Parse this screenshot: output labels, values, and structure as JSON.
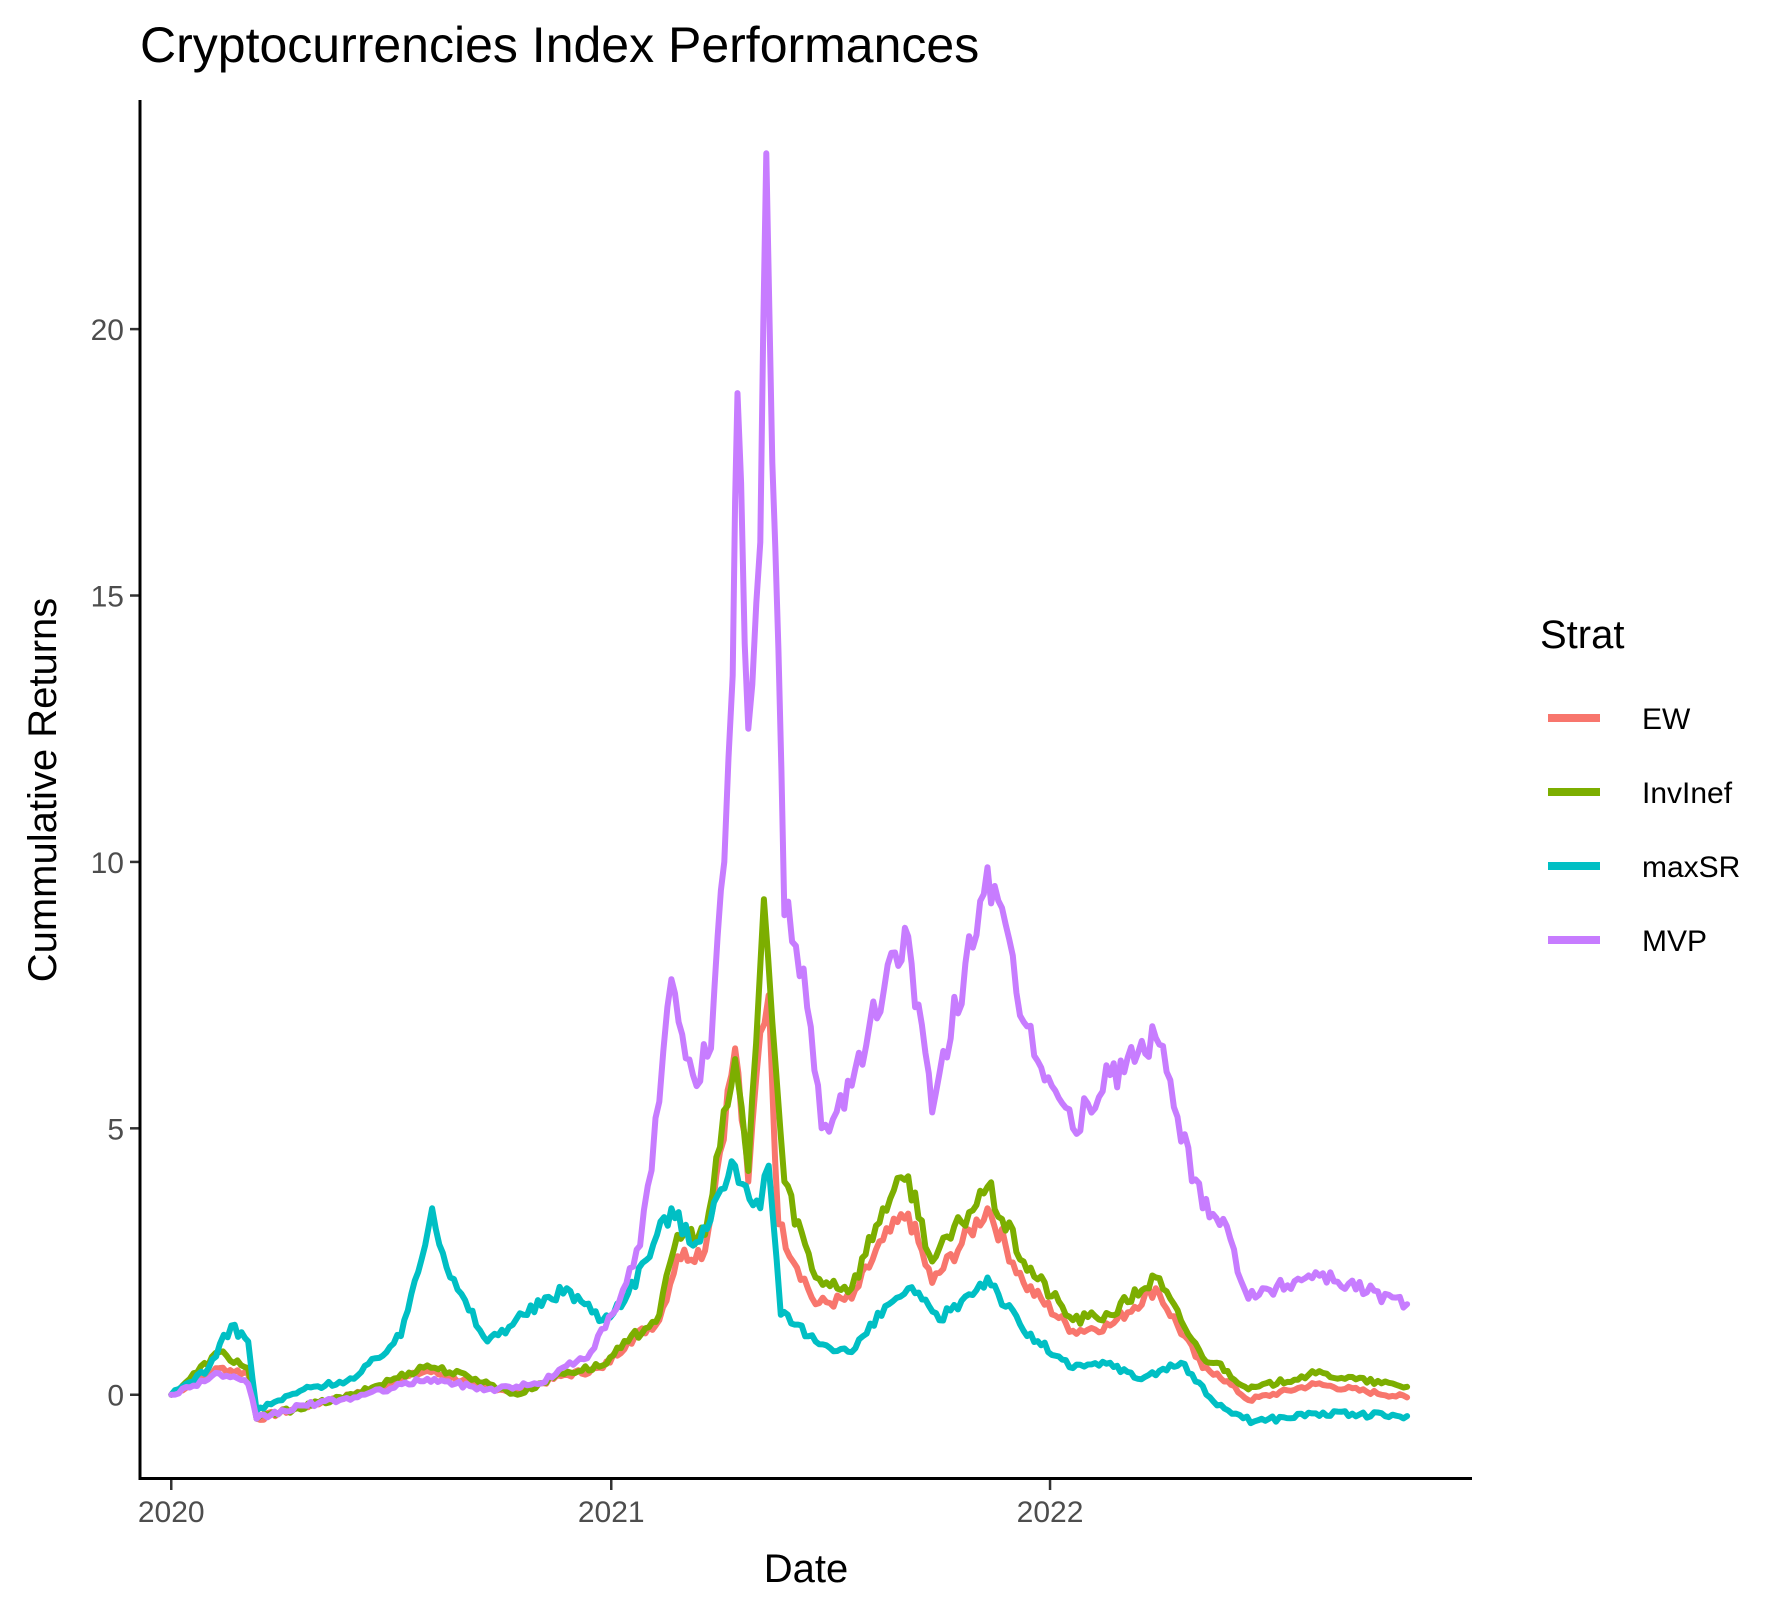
{
  "chart_data": {
    "type": "line",
    "title": "Cryptocurrencies Index Performances",
    "xlabel": "Date",
    "ylabel": "Cummulative Returns",
    "x_ticks": [
      "2020",
      "2021",
      "2022"
    ],
    "y_ticks": [
      0,
      5,
      10,
      15,
      20
    ],
    "xlim": [
      "2019-12-06",
      "2022-12-18"
    ],
    "ylim": [
      -1.6,
      24.3
    ],
    "legend": {
      "title": "Strat",
      "position": "right"
    },
    "grid": false,
    "series": [
      {
        "name": "EW",
        "color": "#F8766D",
        "points": [
          [
            "2020-01-01",
            0.0
          ],
          [
            "2020-02-10",
            0.5
          ],
          [
            "2020-03-05",
            0.4
          ],
          [
            "2020-03-12",
            -0.45
          ],
          [
            "2020-04-15",
            -0.25
          ],
          [
            "2020-06-01",
            0.0
          ],
          [
            "2020-08-01",
            0.45
          ],
          [
            "2020-09-10",
            0.2
          ],
          [
            "2020-10-15",
            0.05
          ],
          [
            "2020-11-20",
            0.35
          ],
          [
            "2020-12-25",
            0.5
          ],
          [
            "2021-01-15",
            1.0
          ],
          [
            "2021-02-10",
            1.4
          ],
          [
            "2021-02-25",
            2.6
          ],
          [
            "2021-03-20",
            2.7
          ],
          [
            "2021-04-14",
            6.5
          ],
          [
            "2021-04-25",
            4.0
          ],
          [
            "2021-05-05",
            6.8
          ],
          [
            "2021-05-12",
            7.5
          ],
          [
            "2021-05-20",
            3.2
          ],
          [
            "2021-06-20",
            1.7
          ],
          [
            "2021-07-20",
            1.8
          ],
          [
            "2021-08-15",
            2.9
          ],
          [
            "2021-09-05",
            3.4
          ],
          [
            "2021-09-25",
            2.1
          ],
          [
            "2021-11-10",
            3.5
          ],
          [
            "2021-12-10",
            2.1
          ],
          [
            "2022-01-20",
            1.2
          ],
          [
            "2022-02-20",
            1.3
          ],
          [
            "2022-03-30",
            2.0
          ],
          [
            "2022-05-08",
            0.5
          ],
          [
            "2022-05-20",
            0.4
          ],
          [
            "2022-06-15",
            -0.1
          ],
          [
            "2022-08-10",
            0.2
          ],
          [
            "2022-10-25",
            -0.05
          ]
        ]
      },
      {
        "name": "InvInef",
        "color": "#7CAE00",
        "points": [
          [
            "2020-01-01",
            0.0
          ],
          [
            "2020-02-10",
            0.8
          ],
          [
            "2020-03-05",
            0.5
          ],
          [
            "2020-03-12",
            -0.45
          ],
          [
            "2020-04-15",
            -0.25
          ],
          [
            "2020-06-01",
            0.0
          ],
          [
            "2020-08-01",
            0.55
          ],
          [
            "2020-09-10",
            0.3
          ],
          [
            "2020-10-15",
            0.0
          ],
          [
            "2020-11-20",
            0.4
          ],
          [
            "2020-12-25",
            0.55
          ],
          [
            "2021-01-15",
            1.0
          ],
          [
            "2021-02-10",
            1.5
          ],
          [
            "2021-02-25",
            3.0
          ],
          [
            "2021-03-20",
            3.0
          ],
          [
            "2021-04-14",
            6.3
          ],
          [
            "2021-04-25",
            4.2
          ],
          [
            "2021-05-08",
            9.3
          ],
          [
            "2021-05-15",
            7.0
          ],
          [
            "2021-05-25",
            4.0
          ],
          [
            "2021-06-20",
            2.2
          ],
          [
            "2021-07-20",
            2.0
          ],
          [
            "2021-08-15",
            3.5
          ],
          [
            "2021-09-05",
            4.1
          ],
          [
            "2021-09-25",
            2.5
          ],
          [
            "2021-11-10",
            3.9
          ],
          [
            "2021-12-10",
            2.5
          ],
          [
            "2022-01-20",
            1.4
          ],
          [
            "2022-02-20",
            1.5
          ],
          [
            "2022-03-30",
            2.2
          ],
          [
            "2022-05-08",
            0.7
          ],
          [
            "2022-05-20",
            0.6
          ],
          [
            "2022-06-15",
            0.1
          ],
          [
            "2022-08-10",
            0.4
          ],
          [
            "2022-10-25",
            0.15
          ]
        ]
      },
      {
        "name": "maxSR",
        "color": "#00BFC4",
        "points": [
          [
            "2020-01-01",
            0.0
          ],
          [
            "2020-02-01",
            0.5
          ],
          [
            "2020-02-20",
            1.3
          ],
          [
            "2020-03-05",
            1.0
          ],
          [
            "2020-03-12",
            -0.3
          ],
          [
            "2020-04-20",
            0.1
          ],
          [
            "2020-06-01",
            0.3
          ],
          [
            "2020-07-10",
            1.1
          ],
          [
            "2020-08-05",
            3.5
          ],
          [
            "2020-08-20",
            2.2
          ],
          [
            "2020-09-20",
            1.0
          ],
          [
            "2020-10-20",
            1.5
          ],
          [
            "2020-11-25",
            2.0
          ],
          [
            "2020-12-25",
            1.4
          ],
          [
            "2021-01-15",
            1.9
          ],
          [
            "2021-02-20",
            3.5
          ],
          [
            "2021-03-10",
            2.8
          ],
          [
            "2021-04-14",
            4.3
          ],
          [
            "2021-05-05",
            3.5
          ],
          [
            "2021-05-12",
            4.3
          ],
          [
            "2021-05-22",
            1.5
          ],
          [
            "2021-06-20",
            1.0
          ],
          [
            "2021-07-20",
            0.8
          ],
          [
            "2021-08-20",
            1.7
          ],
          [
            "2021-09-05",
            2.0
          ],
          [
            "2021-10-01",
            1.4
          ],
          [
            "2021-11-10",
            2.2
          ],
          [
            "2021-12-10",
            1.2
          ],
          [
            "2022-01-20",
            0.5
          ],
          [
            "2022-02-20",
            0.6
          ],
          [
            "2022-03-15",
            0.3
          ],
          [
            "2022-04-20",
            0.6
          ],
          [
            "2022-05-20",
            -0.2
          ],
          [
            "2022-06-20",
            -0.5
          ],
          [
            "2022-08-10",
            -0.35
          ],
          [
            "2022-10-25",
            -0.4
          ]
        ]
      },
      {
        "name": "MVP",
        "color": "#C77CFF",
        "points": [
          [
            "2020-01-01",
            0.0
          ],
          [
            "2020-02-10",
            0.4
          ],
          [
            "2020-03-05",
            0.2
          ],
          [
            "2020-03-12",
            -0.45
          ],
          [
            "2020-04-20",
            -0.2
          ],
          [
            "2020-06-01",
            -0.05
          ],
          [
            "2020-08-01",
            0.3
          ],
          [
            "2020-09-20",
            0.1
          ],
          [
            "2020-11-01",
            0.2
          ],
          [
            "2020-12-15",
            0.8
          ],
          [
            "2021-01-05",
            1.6
          ],
          [
            "2021-01-25",
            2.8
          ],
          [
            "2021-02-10",
            5.5
          ],
          [
            "2021-02-20",
            7.8
          ],
          [
            "2021-03-10",
            6.0
          ],
          [
            "2021-03-25",
            6.5
          ],
          [
            "2021-04-05",
            10.0
          ],
          [
            "2021-04-12",
            13.5
          ],
          [
            "2021-04-16",
            18.8
          ],
          [
            "2021-04-25",
            12.5
          ],
          [
            "2021-05-05",
            16.0
          ],
          [
            "2021-05-10",
            23.3
          ],
          [
            "2021-05-15",
            17.5
          ],
          [
            "2021-05-20",
            14.0
          ],
          [
            "2021-05-25",
            9.0
          ],
          [
            "2021-06-10",
            8.0
          ],
          [
            "2021-06-25",
            5.0
          ],
          [
            "2021-07-20",
            5.8
          ],
          [
            "2021-08-25",
            8.3
          ],
          [
            "2021-09-05",
            8.6
          ],
          [
            "2021-09-25",
            5.3
          ],
          [
            "2021-11-10",
            9.9
          ],
          [
            "2021-12-10",
            7.0
          ],
          [
            "2022-01-20",
            5.0
          ],
          [
            "2022-02-20",
            6.0
          ],
          [
            "2022-03-30",
            6.7
          ],
          [
            "2022-05-08",
            3.5
          ],
          [
            "2022-05-25",
            3.3
          ],
          [
            "2022-06-15",
            1.8
          ],
          [
            "2022-08-10",
            2.3
          ],
          [
            "2022-10-25",
            1.7
          ]
        ]
      }
    ]
  }
}
